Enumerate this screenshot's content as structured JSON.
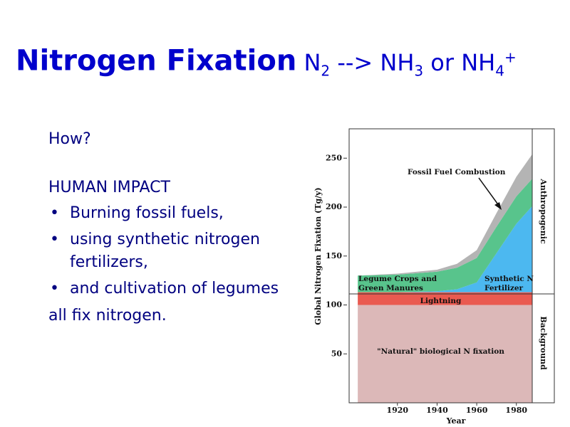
{
  "title": {
    "main": "Nitrogen Fixation",
    "formula": [
      {
        "text": "N",
        "style": "normal"
      },
      {
        "text": "2",
        "style": "sub"
      },
      {
        "text": " --> NH",
        "style": "normal"
      },
      {
        "text": "3",
        "style": "sub"
      },
      {
        "text": " or NH",
        "style": "normal"
      },
      {
        "text": "4",
        "style": "sub"
      },
      {
        "text": "+",
        "style": "sup"
      }
    ]
  },
  "body": {
    "question": "How?",
    "heading": "HUMAN IMPACT",
    "bullets": [
      "Burning fossil fuels,",
      "using synthetic nitrogen fertilizers,",
      "and cultivation of legumes"
    ],
    "closing": "all fix nitrogen."
  },
  "chart_data": {
    "type": "stacked-area",
    "x_label": "Year",
    "y_label": "Global Nitrogen Fixation (Tg/y)",
    "x": [
      1900,
      1920,
      1940,
      1950,
      1960,
      1970,
      1980,
      1988
    ],
    "xlim": [
      1896,
      1988
    ],
    "xticks": [
      1920,
      1940,
      1960,
      1980
    ],
    "ylim": [
      0,
      280
    ],
    "yticks": [
      50,
      100,
      150,
      200,
      250
    ],
    "grid": false,
    "series": [
      {
        "name": "\"Natural\" biological N fixation",
        "color": "#dcb8b8",
        "values": [
          100,
          100,
          100,
          100,
          100,
          100,
          100,
          100
        ]
      },
      {
        "name": "Lightning",
        "color": "#ea5a50",
        "values": [
          13,
          13,
          13,
          13,
          13,
          13,
          13,
          13
        ]
      },
      {
        "name": "Synthetic N Fertilizer",
        "color": "#4cb8f0",
        "values": [
          0,
          0,
          1,
          3,
          10,
          40,
          70,
          88
        ]
      },
      {
        "name": "Legume Crops and Green Manures",
        "color": "#58c48c",
        "values": [
          17,
          18,
          20,
          22,
          25,
          27,
          28,
          28
        ]
      },
      {
        "name": "Fossil Fuel Combustion",
        "color": "#b4b4b4",
        "values": [
          0,
          1,
          2,
          4,
          8,
          14,
          20,
          25
        ]
      }
    ],
    "regions": [
      "Anthropogenic",
      "Background"
    ]
  }
}
